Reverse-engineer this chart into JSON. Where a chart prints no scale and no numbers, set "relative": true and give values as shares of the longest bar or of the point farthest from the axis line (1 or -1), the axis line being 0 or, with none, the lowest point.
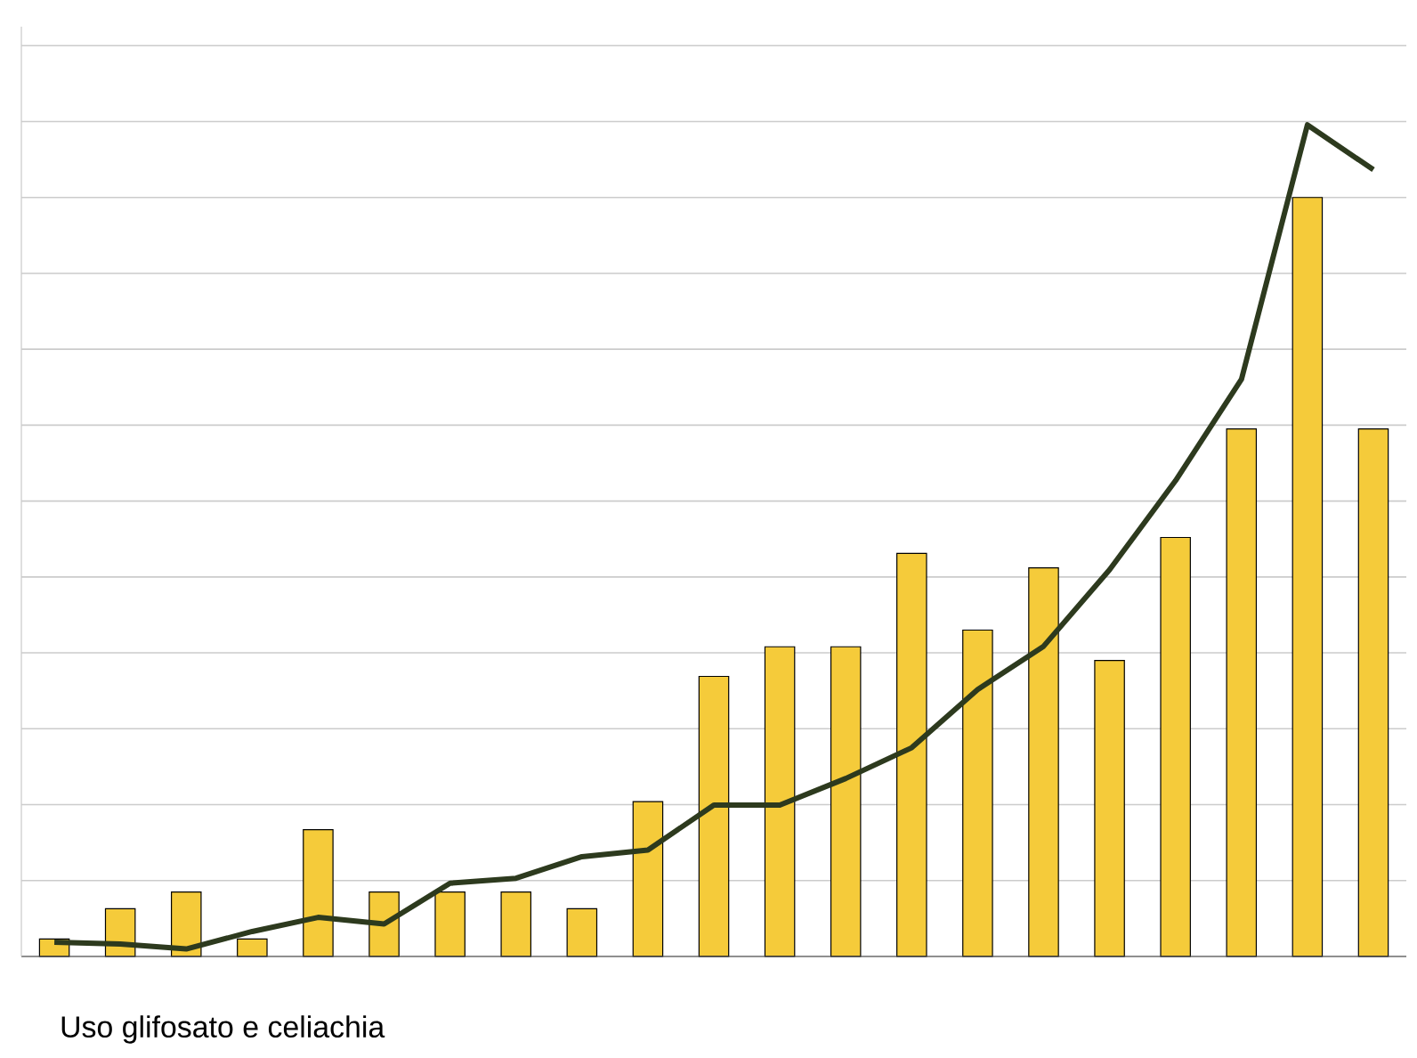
{
  "chart_data": [
    {
      "type": "bar",
      "relative": true,
      "grid": "y",
      "color": "#f5cb3a",
      "categories": [
        null,
        null,
        null,
        null,
        null,
        null,
        null,
        null,
        null,
        null,
        null,
        null,
        null,
        null,
        null,
        null,
        null,
        null,
        null,
        null,
        null
      ],
      "values": [
        0.023,
        0.063,
        0.085,
        0.023,
        0.167,
        0.085,
        0.085,
        0.085,
        0.063,
        0.204,
        0.369,
        0.408,
        0.408,
        0.531,
        0.43,
        0.512,
        0.39,
        0.552,
        0.695,
        1,
        0.695
      ],
      "annotations": [
        "Uso glifosato e celiachia"
      ]
    },
    {
      "type": "line",
      "relative": true,
      "color": "#2d3a1e",
      "categories": [
        null,
        null,
        null,
        null,
        null,
        null,
        null,
        null,
        null,
        null,
        null,
        null,
        null,
        null,
        null,
        null,
        null,
        null,
        null,
        null,
        null
      ],
      "values": [
        0.017,
        0.015,
        0.009,
        0.03,
        0.047,
        0.039,
        0.088,
        0.094,
        0.12,
        0.128,
        0.182,
        0.182,
        0.214,
        0.251,
        0.321,
        0.373,
        0.465,
        0.572,
        0.694,
        1,
        0.946
      ]
    }
  ]
}
